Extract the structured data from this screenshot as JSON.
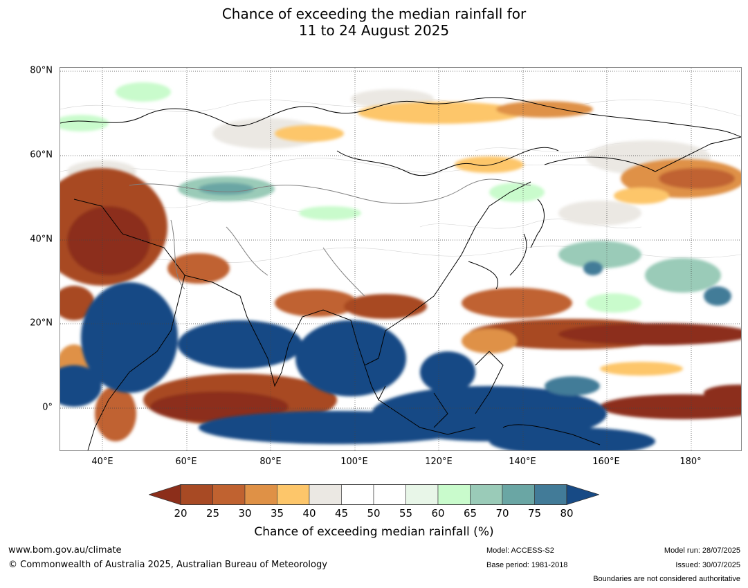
{
  "title": {
    "line1": "Chance of exceeding the median rainfall for",
    "line2": "11 to 24 August 2025"
  },
  "map": {
    "lat_labels": [
      "80°N",
      "60°N",
      "40°N",
      "20°N",
      "0°"
    ],
    "lon_labels": [
      "40°E",
      "60°E",
      "80°E",
      "100°E",
      "120°E",
      "140°E",
      "160°E",
      "180°"
    ],
    "lat_range": [
      -10,
      80
    ],
    "lon_range": [
      30,
      192
    ],
    "gridlines": true
  },
  "colorbar": {
    "ticks": [
      "20",
      "25",
      "30",
      "35",
      "40",
      "45",
      "50",
      "55",
      "60",
      "65",
      "70",
      "75",
      "80"
    ],
    "colors": [
      "#8c2e1a",
      "#a84a24",
      "#c06230",
      "#df9146",
      "#fdc66a",
      "#ebe8e3",
      "#ffffff",
      "#ffffff",
      "#e8f6e8",
      "#c9fbcc",
      "#9acbb8",
      "#6aa6a4",
      "#427b98",
      "#174a85"
    ],
    "title": "Chance of exceeding median rainfall (%)"
  },
  "footer": {
    "url": "www.bom.gov.au/climate",
    "copyright": "© Commonwealth of Australia 2025, Australian Bureau of Meteorology",
    "model": "Model: ACCESS-S2",
    "base_period": "Base period: 1981-2018",
    "model_run": "Model run: 28/07/2025",
    "issued": "Issued: 30/07/2025",
    "disclaimer": "Boundaries are not considered authoritative"
  }
}
